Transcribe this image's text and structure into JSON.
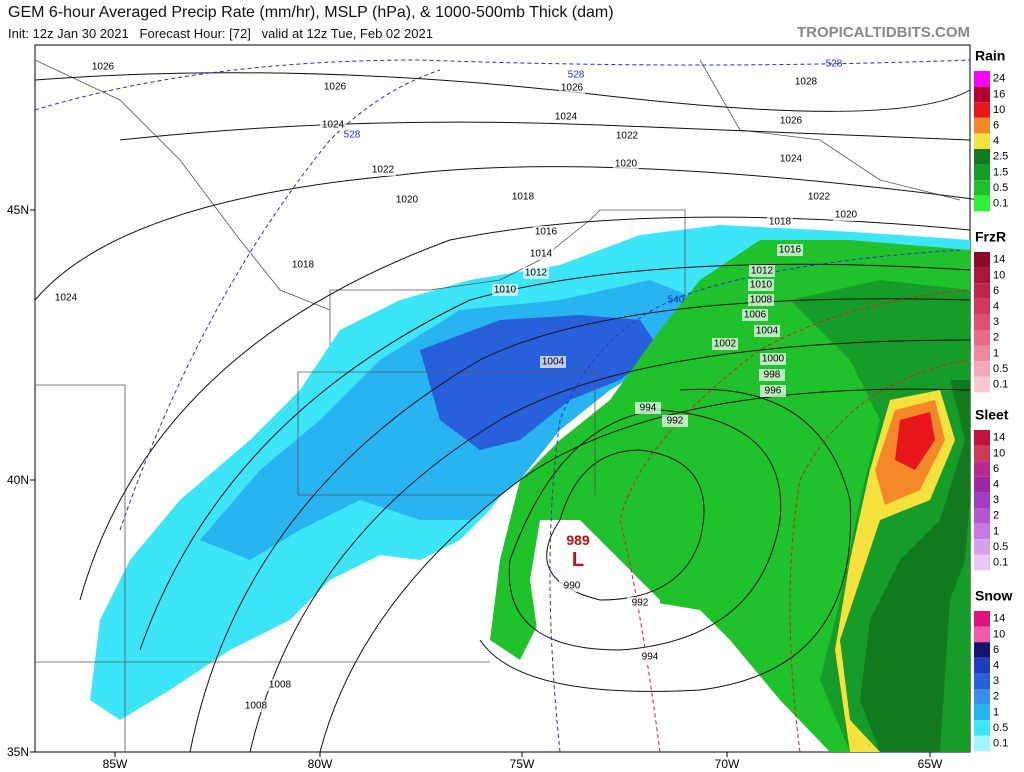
{
  "header": {
    "title": "GEM 6-hour Averaged Precip Rate (mm/hr), MSLP (hPa), & 1000-500mb Thick (dam)",
    "subtitle": "Init: 12z Jan 30 2021   Forecast Hour: [72]   valid at 12z Tue, Feb 02 2021",
    "site": "TROPICALTIDBITS.COM"
  },
  "map": {
    "longitudes": [
      "85W",
      "80W",
      "75W",
      "70W",
      "65W"
    ],
    "latitudes": [
      "45N",
      "40N",
      "35N"
    ],
    "low": {
      "pressure": "989",
      "symbol": "L"
    },
    "isobar_labels": [
      "1026",
      "1026",
      "1026",
      "1028",
      "1024",
      "1024",
      "1026",
      "1022",
      "1022",
      "1024",
      "1020",
      "1020",
      "1018",
      "1022",
      "1020",
      "1018",
      "1016",
      "1018",
      "1024",
      "1014",
      "1012",
      "1010",
      "1016",
      "1012",
      "1010",
      "1008",
      "1006",
      "1004",
      "1002",
      "1000",
      "998",
      "996",
      "1004",
      "994",
      "992",
      "990",
      "992",
      "994",
      "1008",
      "1008"
    ],
    "thickness_labels": [
      "528",
      "528",
      "528",
      "540"
    ]
  },
  "legend": [
    {
      "title": "Rain",
      "labels": [
        "24",
        "16",
        "10",
        "6",
        "4",
        "2.5",
        "1.5",
        "0.5",
        "0.1"
      ],
      "colors": [
        "#ff00ff",
        "#b4002a",
        "#e8151a",
        "#f5892a",
        "#f7e13c",
        "#117a1e",
        "#169c28",
        "#20c22c",
        "#2ef03a"
      ]
    },
    {
      "title": "FrzR",
      "labels": [
        "14",
        "10",
        "6",
        "4",
        "3",
        "2",
        "1",
        "0.5",
        "0.1"
      ],
      "colors": [
        "#8c0a2a",
        "#a8173a",
        "#c0244a",
        "#d0385c",
        "#dd5072",
        "#e66c88",
        "#ee8aa0",
        "#f5a8ba",
        "#fbc8d4"
      ]
    },
    {
      "title": "Sleet",
      "labels": [
        "14",
        "10",
        "6",
        "4",
        "3",
        "2",
        "1",
        "0.5",
        "0.1"
      ],
      "colors": [
        "#c0143c",
        "#d03a5a",
        "#b82a8c",
        "#9a28a0",
        "#a23cc0",
        "#b458d0",
        "#c47ade",
        "#d6a0ea",
        "#e8c8f4"
      ]
    },
    {
      "title": "Snow",
      "labels": [
        "14",
        "10",
        "6",
        "4",
        "3",
        "2",
        "1",
        "0.5",
        "0.1"
      ],
      "colors": [
        "#e0147c",
        "#f05aa8",
        "#14146e",
        "#1e3cbe",
        "#2860dc",
        "#3c8cf0",
        "#28b4f0",
        "#3ce6f8",
        "#a0f6fc"
      ]
    }
  ]
}
